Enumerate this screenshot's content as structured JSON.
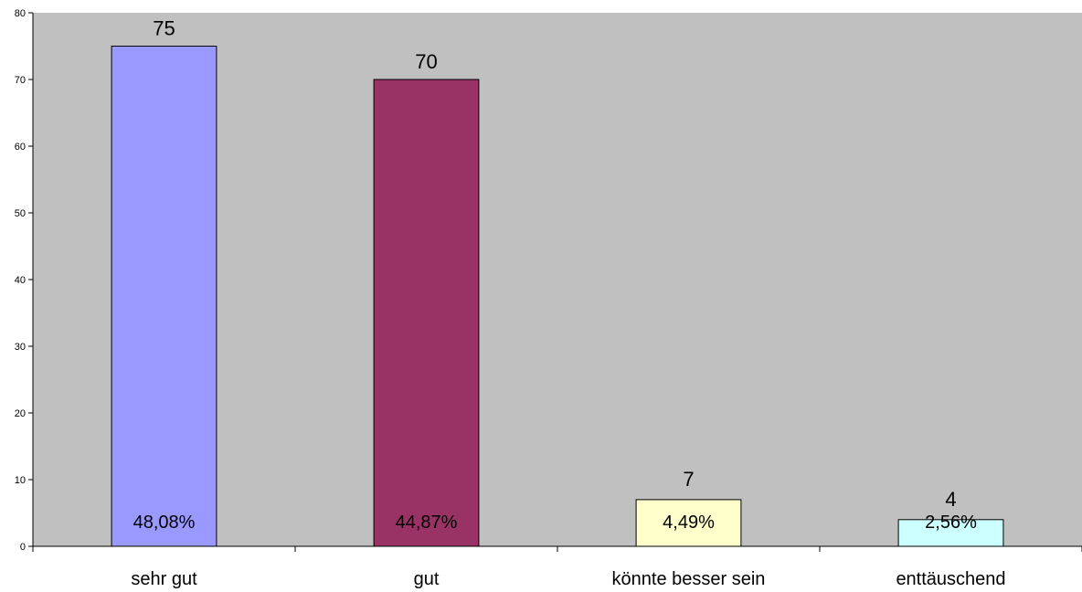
{
  "chart_data": {
    "type": "bar",
    "categories": [
      "sehr gut",
      "gut",
      "könnte besser sein",
      "enttäuschend"
    ],
    "values": [
      75,
      70,
      7,
      4
    ],
    "percent_labels": [
      "48,08%",
      "44,87%",
      "4,49%",
      "2,56%"
    ],
    "colors": [
      "#9999ff",
      "#993366",
      "#ffffcc",
      "#ccffff"
    ],
    "plot_background": "#c0c0c0",
    "ylim": [
      0,
      80
    ],
    "yticks": [
      0,
      10,
      20,
      30,
      40,
      50,
      60,
      70,
      80
    ],
    "grid": false,
    "legend": "none",
    "title": "",
    "xlabel": "",
    "ylabel": ""
  }
}
